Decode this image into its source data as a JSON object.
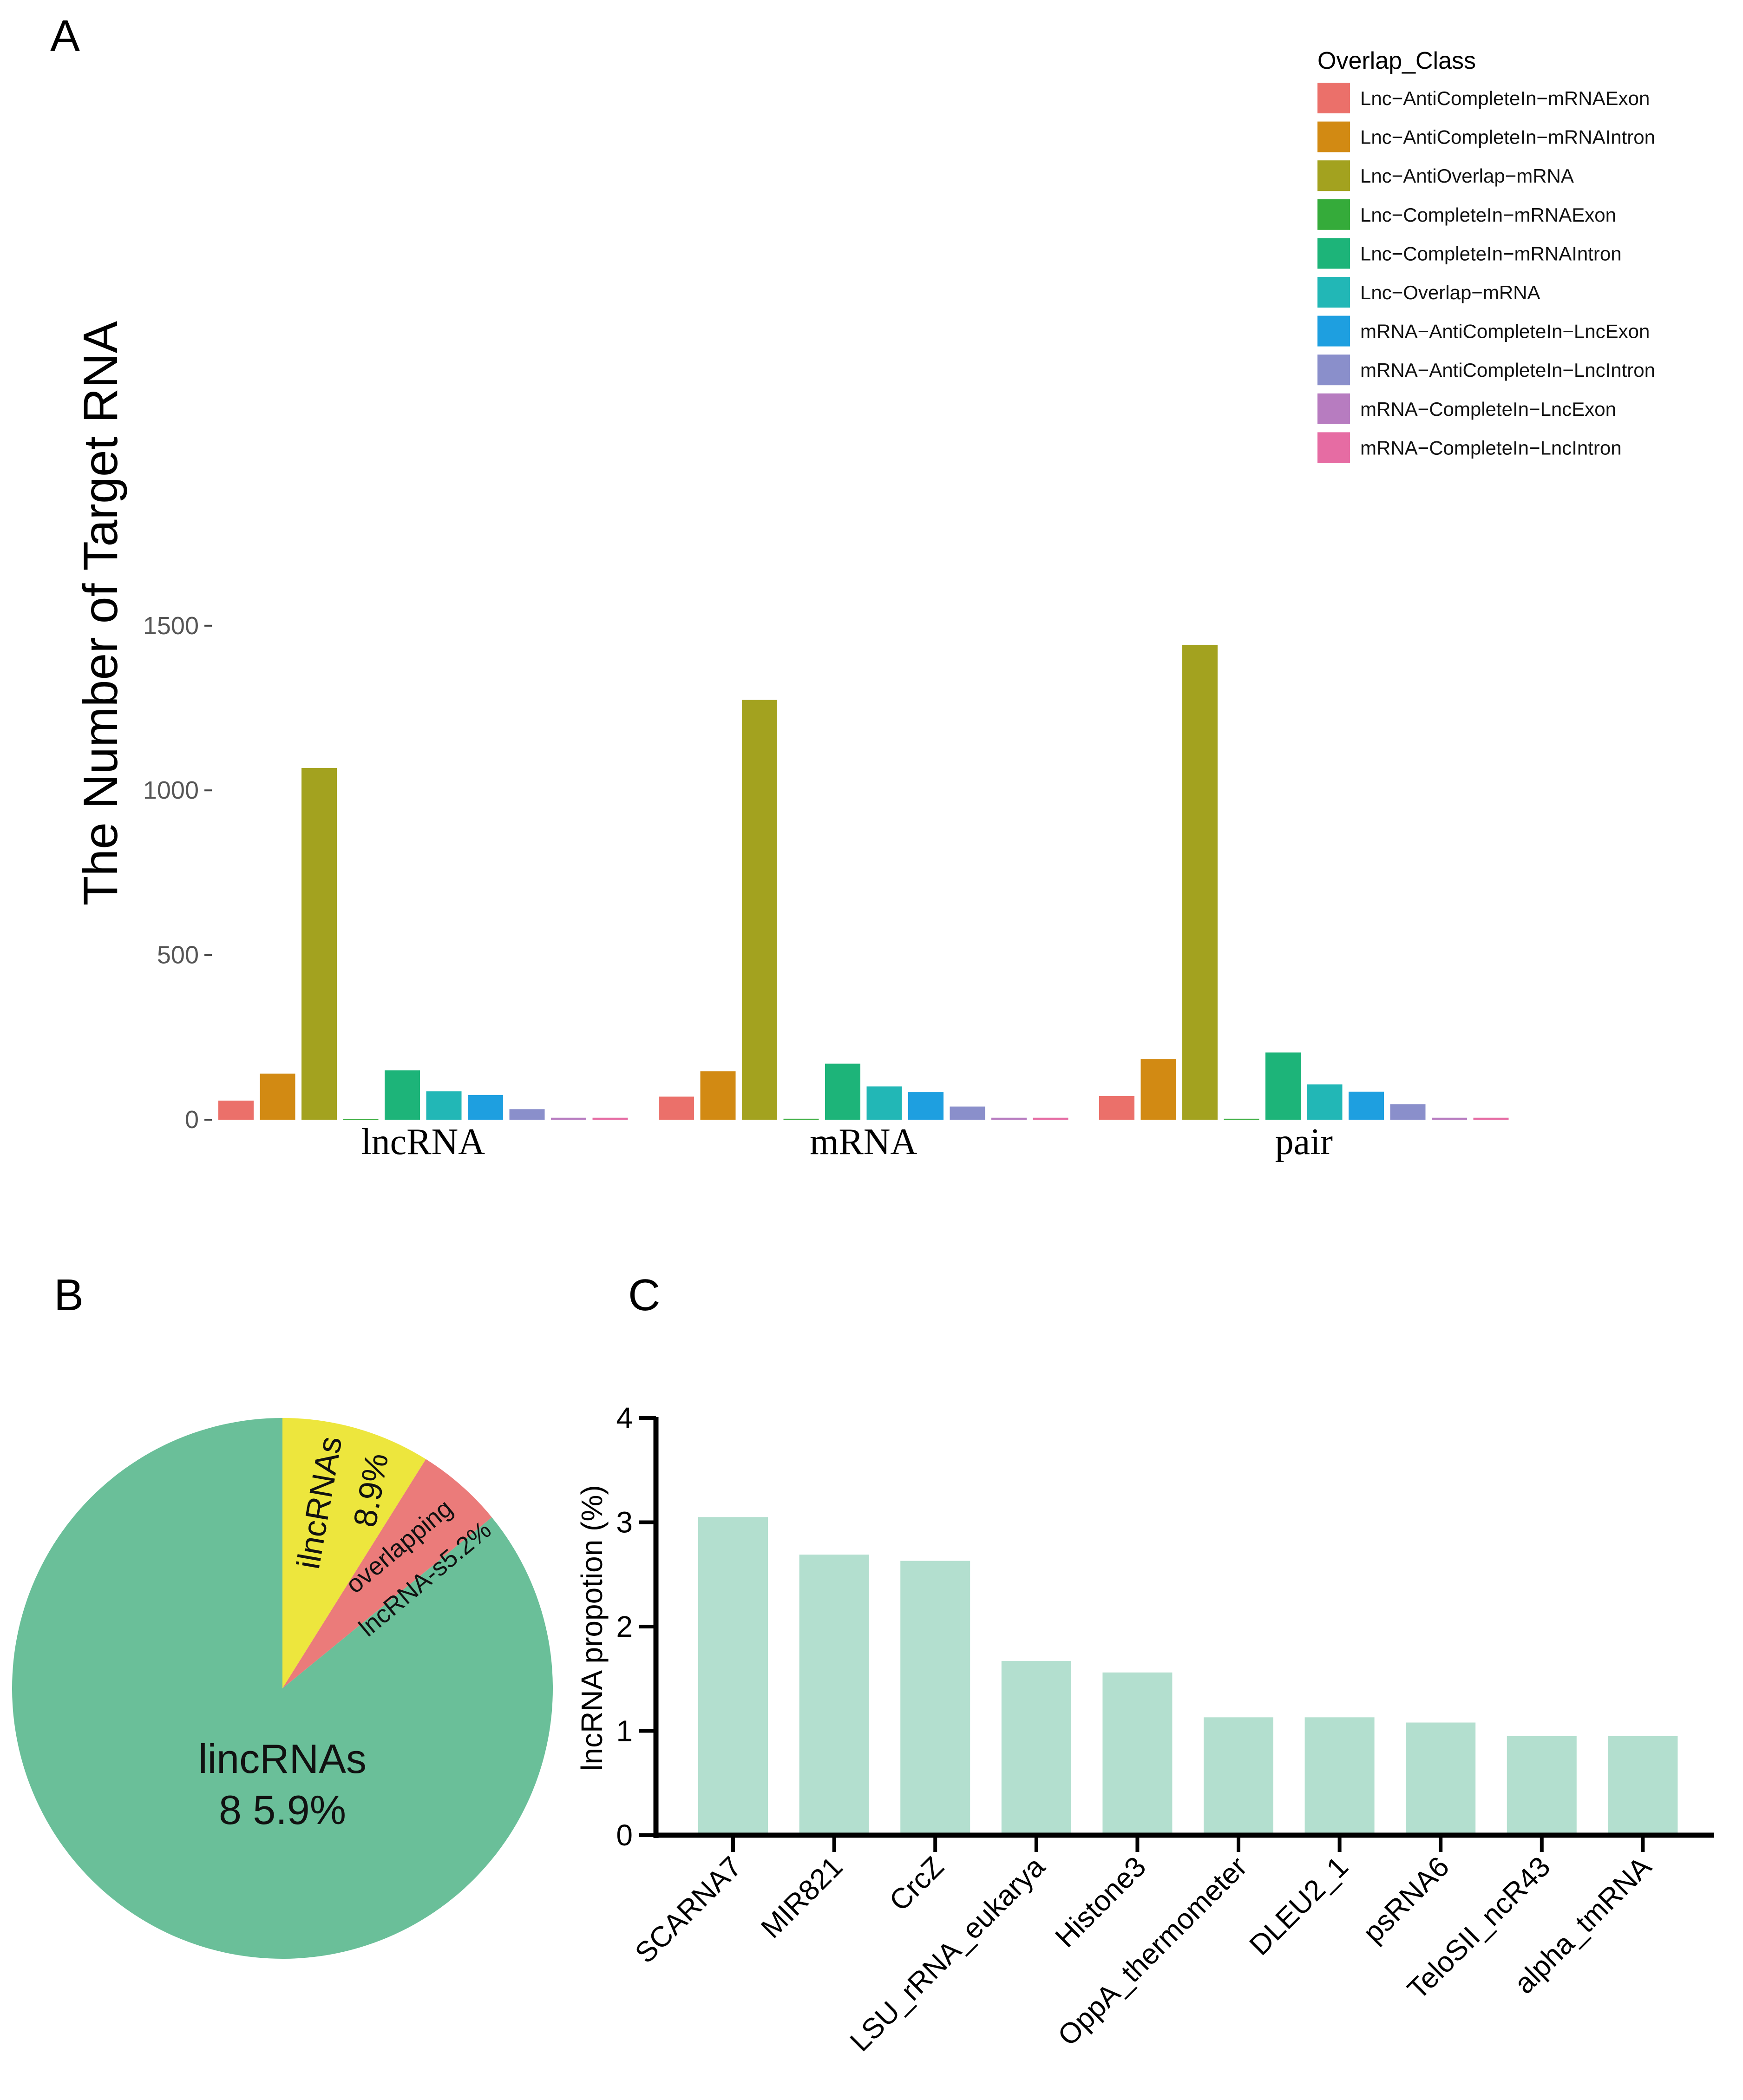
{
  "panel_labels": {
    "a": "A",
    "b": "B",
    "c": "C"
  },
  "chart_data": [
    {
      "panel": "A",
      "type": "bar",
      "title": "",
      "xlabel": "",
      "ylabel": "The Number of Target RNA",
      "ylim": [
        0,
        1600
      ],
      "yticks": [
        0,
        500,
        1000,
        1500
      ],
      "categories": [
        "lncRNA",
        "mRNA",
        "pair"
      ],
      "legend_title": "Overlap_Class",
      "legend_position": "top-right",
      "series": [
        {
          "name": "Lnc−AntiCompleteIn−mRNAExon",
          "color": "#EB706A",
          "values": [
            58,
            70,
            72
          ]
        },
        {
          "name": "Lnc−AntiCompleteIn−mRNAIntron",
          "color": "#D28A13",
          "values": [
            140,
            147,
            184
          ]
        },
        {
          "name": "Lnc−AntiOverlap−mRNA",
          "color": "#A3A21F",
          "values": [
            1068,
            1275,
            1442
          ]
        },
        {
          "name": "Lnc−CompleteIn−mRNAExon",
          "color": "#35AB3A",
          "values": [
            2,
            3,
            3
          ]
        },
        {
          "name": "Lnc−CompleteIn−mRNAIntron",
          "color": "#1DB479",
          "values": [
            150,
            170,
            204
          ]
        },
        {
          "name": "Lnc−Overlap−mRNA",
          "color": "#22B7B6",
          "values": [
            86,
            101,
            107
          ]
        },
        {
          "name": "mRNA−AntiCompleteIn−LncExon",
          "color": "#1E9FE0",
          "values": [
            75,
            84,
            85
          ]
        },
        {
          "name": "mRNA−AntiCompleteIn−LncIntron",
          "color": "#8A8FCB",
          "values": [
            32,
            40,
            47
          ]
        },
        {
          "name": "mRNA−CompleteIn−LncExon",
          "color": "#B77CC0",
          "values": [
            6,
            6,
            6
          ]
        },
        {
          "name": "mRNA−CompleteIn−LncIntron",
          "color": "#E66CA3",
          "values": [
            6,
            6,
            6
          ]
        }
      ]
    },
    {
      "panel": "B",
      "type": "pie",
      "title": "",
      "slices": [
        {
          "name": "lincRNAs",
          "value": 85.9,
          "label": "lincRNAs",
          "pct_label": "8 5.9%",
          "color": "#6ABF99"
        },
        {
          "name": "ilncRNAs",
          "value": 8.9,
          "label": "ilncRNAs",
          "pct_label": "8.9%",
          "color": "#EDE63D"
        },
        {
          "name": "overlapping lncRNAs",
          "value": 5.2,
          "label": "overlapping",
          "label2": "lncRNA-s5.2%",
          "color": "#EB7B7A"
        }
      ]
    },
    {
      "panel": "C",
      "type": "bar",
      "title": "",
      "xlabel": "",
      "ylabel": "lncRNA propotion (%)",
      "ylim": [
        0,
        4
      ],
      "yticks": [
        0,
        1,
        2,
        3,
        4
      ],
      "bar_color": "#B3DFCF",
      "categories": [
        "SCARNA7",
        "MIR821",
        "CrcZ",
        "LSU_rRNA_eukarya",
        "Histone3",
        "OppA_thermometer",
        "DLEU2_1",
        "psRNA6",
        "TeloSII_ncR43",
        "alpha_tmRNA"
      ],
      "values": [
        3.05,
        2.69,
        2.63,
        1.67,
        1.56,
        1.13,
        1.13,
        1.08,
        0.95,
        0.95
      ]
    }
  ]
}
